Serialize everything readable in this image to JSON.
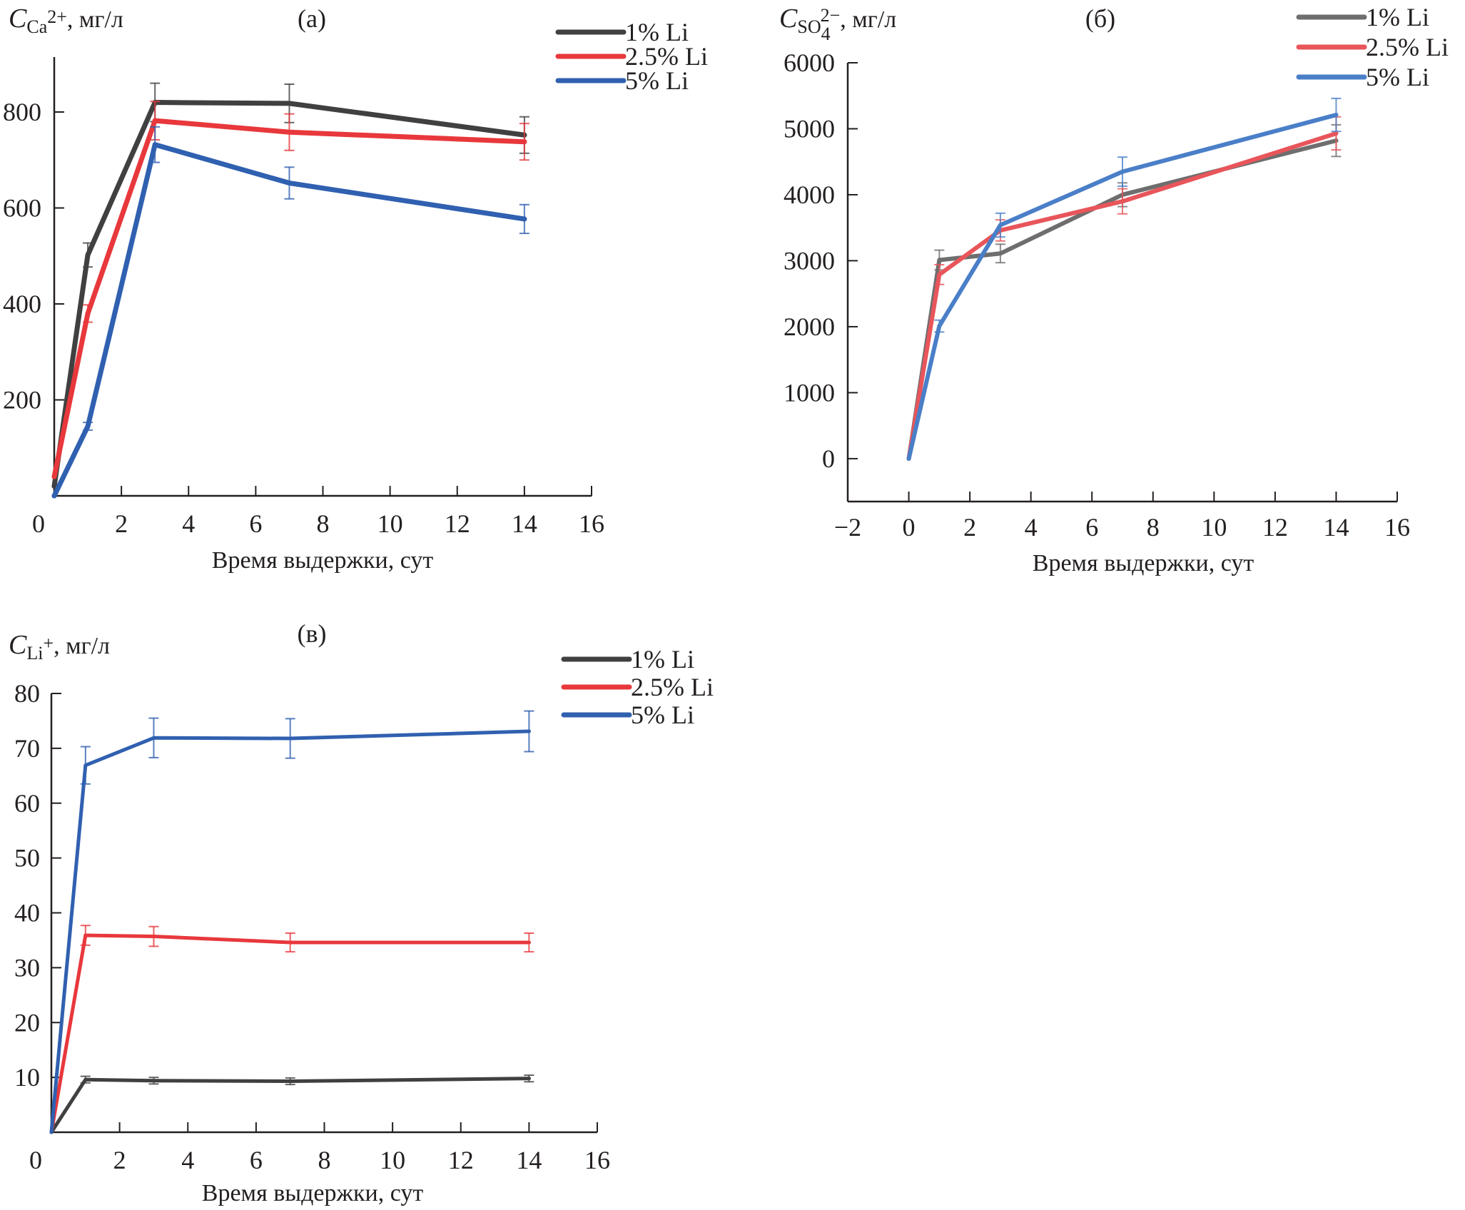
{
  "chart_data": [
    {
      "id": "a",
      "type": "line",
      "panel_label": "(а)",
      "ylabel": {
        "symbol": "C",
        "subscript": "Ca",
        "superscript": "2+",
        "unit": ", мг/л"
      },
      "xlabel": "Время выдержки, сут",
      "xlim": [
        0,
        16
      ],
      "ylim": [
        0,
        900
      ],
      "xticks": [
        0,
        2,
        4,
        6,
        8,
        10,
        12,
        14,
        16
      ],
      "yticks": [
        200,
        400,
        600,
        800
      ],
      "x": [
        0,
        1,
        3,
        7,
        14
      ],
      "legend_position": "top-right",
      "series": [
        {
          "name": "1% Li",
          "color": "#404040",
          "values": [
            20,
            502,
            820,
            818,
            752
          ],
          "errors": [
            0,
            25,
            40,
            40,
            38
          ]
        },
        {
          "name": "2.5% Li",
          "color": "#e8383c",
          "values": [
            40,
            380,
            782,
            758,
            738
          ],
          "errors": [
            0,
            18,
            40,
            38,
            38
          ]
        },
        {
          "name": "5% Li",
          "color": "#3060b0",
          "values": [
            0,
            145,
            732,
            652,
            577
          ],
          "errors": [
            0,
            8,
            37,
            33,
            30
          ]
        }
      ]
    },
    {
      "id": "b",
      "type": "line",
      "panel_label": "(б)",
      "ylabel": {
        "symbol": "C",
        "subscript": "SO",
        "subsub": "4",
        "superscript": "2−",
        "unit": ", мг/л"
      },
      "xlabel": "Время выдержки, сут",
      "xlim": [
        -2,
        16
      ],
      "ylim": [
        -650,
        6000
      ],
      "xticks": [
        -2,
        0,
        2,
        4,
        6,
        8,
        10,
        12,
        14,
        16
      ],
      "xtick_labels": [
        "−2",
        "0",
        "2",
        "4",
        "6",
        "8",
        "10",
        "12",
        "14",
        "16"
      ],
      "yticks": [
        0,
        1000,
        2000,
        3000,
        4000,
        5000,
        6000
      ],
      "x": [
        0,
        1,
        3,
        7,
        14
      ],
      "legend_position": "top-right",
      "series": [
        {
          "name": "1% Li",
          "color": "#6e6e6e",
          "values": [
            0,
            3010,
            3110,
            4000,
            4820
          ],
          "errors": [
            0,
            150,
            140,
            180,
            240
          ]
        },
        {
          "name": "2.5% Li",
          "color": "#e8555a",
          "values": [
            0,
            2790,
            3460,
            3900,
            4930
          ],
          "errors": [
            0,
            150,
            160,
            190,
            250
          ]
        },
        {
          "name": "5% Li",
          "color": "#4a7fc8",
          "values": [
            0,
            2010,
            3540,
            4350,
            5210
          ],
          "errors": [
            0,
            90,
            180,
            220,
            250
          ]
        }
      ]
    },
    {
      "id": "c",
      "type": "line",
      "panel_label": "(в)",
      "ylabel": {
        "symbol": "C",
        "subscript": "Li",
        "superscript": "+",
        "unit": ", мг/л"
      },
      "xlabel": "Время выдержки, сут",
      "xlim": [
        0,
        16
      ],
      "ylim": [
        0,
        80
      ],
      "xticks": [
        0,
        2,
        4,
        6,
        8,
        10,
        12,
        14,
        16
      ],
      "yticks": [
        10,
        20,
        30,
        40,
        50,
        60,
        70,
        80
      ],
      "x": [
        0,
        1,
        3,
        7,
        14
      ],
      "legend_position": "top-right",
      "series": [
        {
          "name": "1% Li",
          "color": "#404040",
          "values": [
            0,
            9.6,
            9.4,
            9.3,
            9.8
          ],
          "errors": [
            0,
            0.6,
            0.6,
            0.6,
            0.6
          ]
        },
        {
          "name": "2.5% Li",
          "color": "#e8383c",
          "values": [
            0,
            35.9,
            35.7,
            34.6,
            34.6
          ],
          "errors": [
            0,
            1.8,
            1.8,
            1.7,
            1.7
          ]
        },
        {
          "name": "5% Li",
          "color": "#3060b0",
          "values": [
            0,
            66.9,
            71.9,
            71.8,
            73.1
          ],
          "errors": [
            0,
            3.4,
            3.6,
            3.6,
            3.7
          ]
        }
      ]
    }
  ]
}
